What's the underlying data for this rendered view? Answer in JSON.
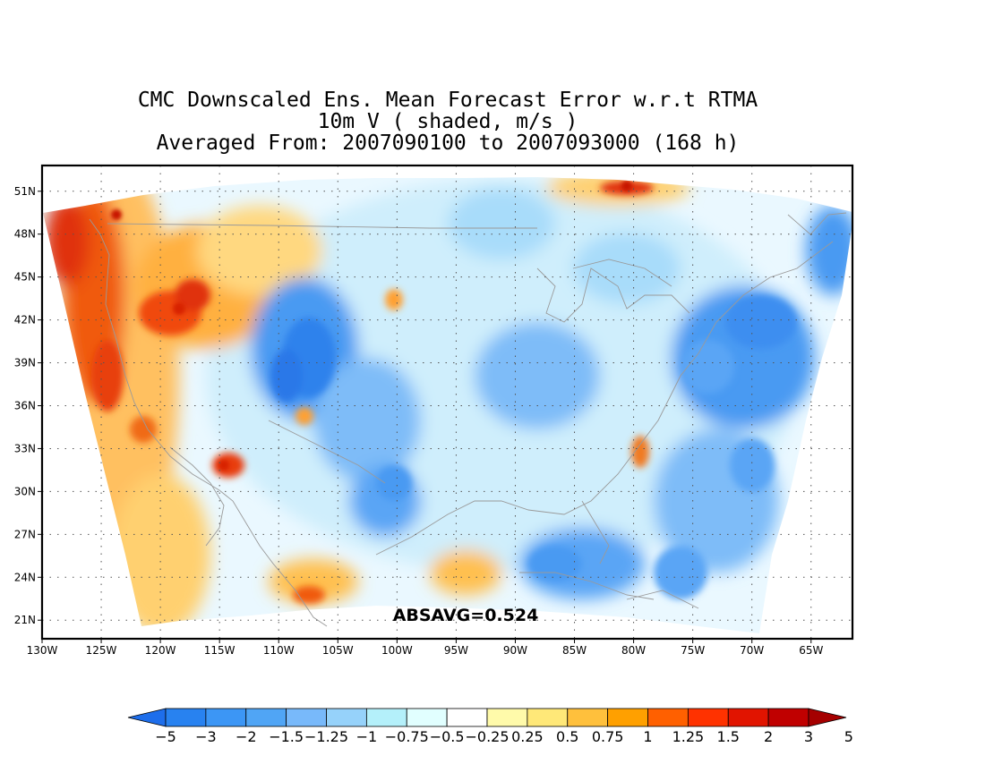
{
  "title": {
    "line1": "CMC Downscaled Ens. Mean Forecast Error w.r.t RTMA",
    "line2": "10m V ( shaded, m/s )",
    "line3": "Averaged From: 2007090100 to 2007093000 (168 h)"
  },
  "map": {
    "lat_labels": [
      "51N",
      "48N",
      "45N",
      "42N",
      "39N",
      "36N",
      "33N",
      "30N",
      "27N",
      "24N",
      "21N"
    ],
    "lat_values": [
      51,
      48,
      45,
      42,
      39,
      36,
      33,
      30,
      27,
      24,
      21
    ],
    "lon_labels": [
      "130W",
      "125W",
      "120W",
      "115W",
      "110W",
      "105W",
      "100W",
      "95W",
      "90W",
      "85W",
      "80W",
      "75W",
      "70W",
      "65W"
    ],
    "lon_values": [
      -130,
      -125,
      -120,
      -115,
      -110,
      -105,
      -100,
      -95,
      -90,
      -85,
      -80,
      -75,
      -70,
      -65
    ],
    "lon_range": [
      -130,
      -61.5
    ],
    "lat_range": [
      19.7,
      52.8
    ],
    "grid": "dotted",
    "annotation": "ABSAVG=0.524"
  },
  "colorbar": {
    "labels": [
      "-5",
      "-3",
      "-2",
      "-1.5",
      "-1.25",
      "-1",
      "-0.75",
      "-0.5",
      "-0.25",
      "0.25",
      "0.5",
      "0.75",
      "1",
      "1.25",
      "1.5",
      "2",
      "3",
      "5"
    ],
    "colors": [
      "#1e6eeb",
      "#2882f0",
      "#3c96f5",
      "#50a5f5",
      "#78b9fa",
      "#96d2fa",
      "#b4f0fa",
      "#e1ffff",
      "#ffffff",
      "#fffaaa",
      "#ffe878",
      "#ffc03c",
      "#ffa000",
      "#ff6000",
      "#ff3200",
      "#e11400",
      "#c00000",
      "#a50000"
    ]
  },
  "palette": {
    "neg_strong": "#2a7ae8",
    "neg_mid": "#5aaaf5",
    "neg_light": "#a8dcfa",
    "neutral": "#ffffff",
    "pos_light": "#fff0a0",
    "pos_mid": "#ffb030",
    "pos_strong": "#f03c0a",
    "coast": "#9a9a9a",
    "frame": "#000000"
  }
}
